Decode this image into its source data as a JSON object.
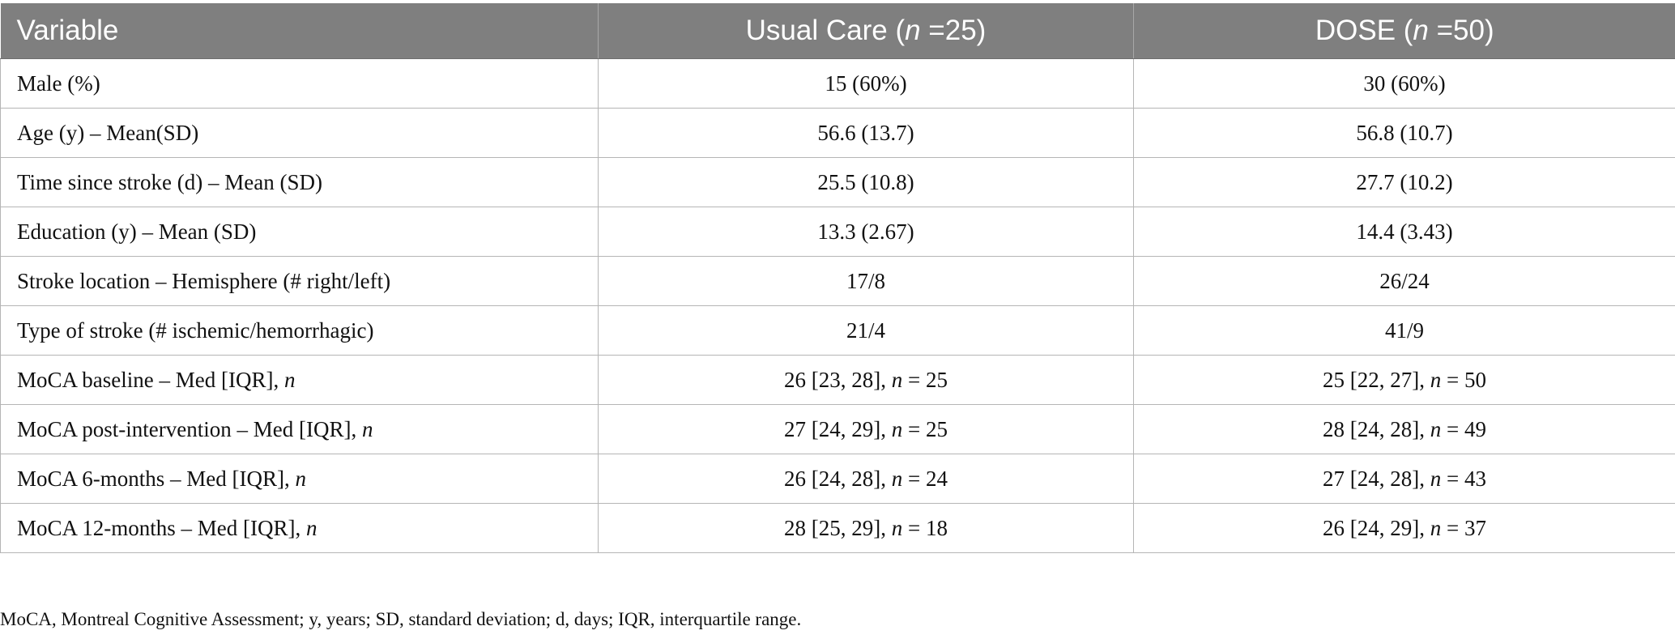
{
  "table": {
    "headers": [
      {
        "pre": "Variable",
        "n_label": "",
        "post": ""
      },
      {
        "pre": "Usual Care (",
        "n_label": "n",
        "post": " =25)"
      },
      {
        "pre": "DOSE (",
        "n_label": "n",
        "post": " =50)"
      }
    ],
    "rows": [
      {
        "variable": "Male (%)",
        "var_italic_suffix": "",
        "usual": "15 (60%)",
        "usual_n": "",
        "dose": "30 (60%)",
        "dose_n": ""
      },
      {
        "variable": "Age (y) – Mean(SD)",
        "var_italic_suffix": "",
        "usual": "56.6 (13.7)",
        "usual_n": "",
        "dose": "56.8 (10.7)",
        "dose_n": ""
      },
      {
        "variable": "Time since stroke (d) – Mean (SD)",
        "var_italic_suffix": "",
        "usual": "25.5 (10.8)",
        "usual_n": "",
        "dose": "27.7 (10.2)",
        "dose_n": ""
      },
      {
        "variable": "Education (y) – Mean (SD)",
        "var_italic_suffix": "",
        "usual": "13.3 (2.67)",
        "usual_n": "",
        "dose": "14.4 (3.43)",
        "dose_n": ""
      },
      {
        "variable": "Stroke location – Hemisphere (# right/left)",
        "var_italic_suffix": "",
        "usual": "17/8",
        "usual_n": "",
        "dose": "26/24",
        "dose_n": ""
      },
      {
        "variable": "Type of stroke (# ischemic/hemorrhagic)",
        "var_italic_suffix": "",
        "usual": "21/4",
        "usual_n": "",
        "dose": "41/9",
        "dose_n": ""
      },
      {
        "variable": "MoCA baseline – Med [IQR], ",
        "var_italic_suffix": "n",
        "usual": "26 [23, 28], ",
        "usual_n": "25",
        "dose": "25 [22, 27], ",
        "dose_n": "50"
      },
      {
        "variable": "MoCA post-intervention – Med [IQR], ",
        "var_italic_suffix": "n",
        "usual": "27 [24, 29], ",
        "usual_n": "25",
        "dose": "28 [24, 28], ",
        "dose_n": "49"
      },
      {
        "variable": "MoCA 6-months – Med [IQR], ",
        "var_italic_suffix": "n",
        "usual": "26 [24, 28], ",
        "usual_n": "24",
        "dose": "27 [24, 28], ",
        "dose_n": "43"
      },
      {
        "variable": "MoCA 12-months – Med [IQR], ",
        "var_italic_suffix": "n",
        "usual": "28 [25, 29], ",
        "usual_n": "18",
        "dose": "26 [24, 29], ",
        "dose_n": "37"
      }
    ],
    "n_symbol": "n",
    "n_eq": " = "
  },
  "footnote": "MoCA, Montreal Cognitive Assessment; y, years; SD, standard deviation; d, days; IQR, interquartile range."
}
